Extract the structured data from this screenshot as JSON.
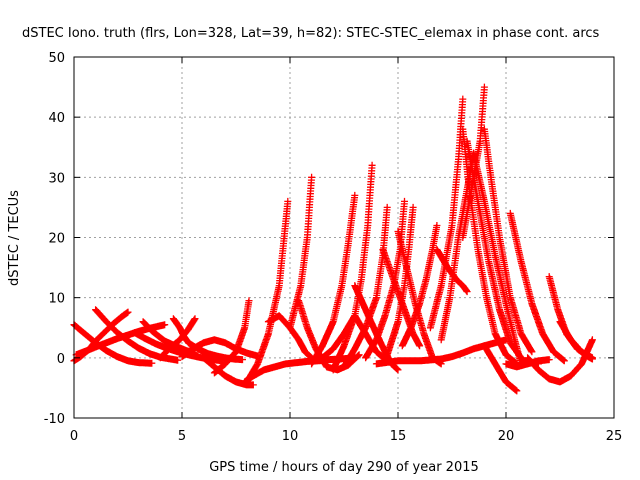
{
  "chart_data": {
    "type": "scatter",
    "title": "dSTEC Iono. truth (flrs, Lon=328, Lat=39, h=82): STEC-STEC_elemax in phase cont. arcs",
    "xlabel": "GPS time / hours of day 290 of year 2015",
    "ylabel": "dSTEC  / TECUs",
    "xlim": [
      0,
      25
    ],
    "ylim": [
      -10,
      50
    ],
    "xticks": [
      0,
      5,
      10,
      15,
      20,
      25
    ],
    "yticks": [
      -10,
      0,
      10,
      20,
      30,
      40,
      50
    ],
    "grid": true,
    "marker": "plus",
    "colors": {
      "series": "#ff0000",
      "grid": "#a0a0a0",
      "axis": "#000000"
    },
    "series": [
      {
        "x": [
          0.0,
          0.5,
          1.0,
          1.5,
          2.0,
          2.5,
          3.0,
          3.6
        ],
        "y": [
          5.5,
          4.0,
          2.5,
          1.2,
          0.2,
          -0.5,
          -0.8,
          -0.9
        ]
      },
      {
        "x": [
          0.0,
          0.3,
          0.7,
          1.0,
          1.4,
          1.8,
          2.2,
          2.5
        ],
        "y": [
          -0.5,
          0.2,
          1.4,
          2.8,
          4.2,
          5.6,
          6.8,
          7.6
        ]
      },
      {
        "x": [
          0.1,
          0.6,
          1.0,
          1.5,
          2.0,
          2.5,
          3.0,
          3.5,
          4.2
        ],
        "y": [
          0.5,
          1.2,
          1.8,
          2.5,
          3.2,
          3.8,
          4.4,
          4.9,
          5.5
        ]
      },
      {
        "x": [
          1.0,
          1.5,
          2.0,
          2.5,
          3.0,
          3.5,
          4.0,
          4.8
        ],
        "y": [
          8.0,
          6.0,
          4.2,
          2.8,
          1.6,
          0.7,
          0.1,
          -0.4
        ]
      },
      {
        "x": [
          2.8,
          3.3,
          3.8,
          4.3,
          4.8,
          5.3,
          5.8,
          6.4,
          6.9
        ],
        "y": [
          4.2,
          3.2,
          2.3,
          1.6,
          1.0,
          0.5,
          0.1,
          -0.3,
          -0.5
        ]
      },
      {
        "x": [
          3.2,
          3.6,
          4.2,
          4.8,
          5.2,
          5.6
        ],
        "y": [
          6.0,
          4.5,
          2.8,
          1.8,
          1.2,
          0.8
        ]
      },
      {
        "x": [
          4.6,
          4.9,
          5.1,
          5.3,
          5.6,
          5.9,
          6.2,
          6.6,
          7.0,
          7.4,
          7.8
        ],
        "y": [
          6.5,
          5.0,
          3.5,
          2.5,
          1.8,
          1.2,
          0.7,
          0.3,
          0.0,
          -0.2,
          -0.3
        ]
      },
      {
        "x": [
          4.0,
          4.4,
          4.9,
          5.3,
          5.6
        ],
        "y": [
          0.0,
          1.5,
          3.0,
          4.8,
          6.5
        ]
      },
      {
        "x": [
          5.0,
          5.5,
          6.0,
          6.5,
          7.0,
          7.5,
          8.0,
          8.5
        ],
        "y": [
          0.2,
          1.5,
          2.5,
          3.0,
          2.5,
          1.5,
          0.8,
          0.3
        ]
      },
      {
        "x": [
          6.0,
          6.5,
          7.0,
          7.5,
          8.0,
          8.3
        ],
        "y": [
          0.0,
          -1.5,
          -3.0,
          -4.0,
          -4.5,
          -4.5
        ]
      },
      {
        "x": [
          6.5,
          7.0,
          7.5,
          7.9,
          8.1
        ],
        "y": [
          -2.5,
          -1.0,
          1.0,
          5.0,
          9.5
        ]
      },
      {
        "x": [
          8.0,
          8.5,
          9.0,
          9.5,
          9.7,
          9.9
        ],
        "y": [
          -4.0,
          -1.0,
          4.0,
          12.0,
          19.0,
          26.0
        ]
      },
      {
        "x": [
          7.9,
          8.3,
          8.8,
          9.3,
          9.8,
          10.3,
          10.8,
          11.3,
          11.8,
          12.3,
          13.0
        ],
        "y": [
          -4.0,
          -3.0,
          -2.0,
          -1.5,
          -1.0,
          -0.8,
          -0.6,
          -0.5,
          -0.3,
          -0.2,
          0.0
        ]
      },
      {
        "x": [
          9.0,
          9.5,
          10.0,
          10.4,
          10.7,
          11.0
        ],
        "y": [
          6.0,
          7.0,
          5.0,
          3.0,
          1.0,
          0.0
        ]
      },
      {
        "x": [
          10.0,
          10.5,
          10.8,
          11.0
        ],
        "y": [
          5.0,
          12.0,
          20.0,
          30.0
        ]
      },
      {
        "x": [
          10.4,
          10.8,
          11.2,
          11.7,
          12.2,
          12.7,
          13.2
        ],
        "y": [
          9.5,
          5.0,
          1.5,
          -1.5,
          -2.0,
          -1.2,
          0.5
        ]
      },
      {
        "x": [
          11.0,
          11.5,
          12.0,
          12.4,
          12.7,
          13.0
        ],
        "y": [
          -1.0,
          2.0,
          6.0,
          12.0,
          19.0,
          27.0
        ]
      },
      {
        "x": [
          11.5,
          12.0,
          12.5,
          13.0,
          13.5,
          14.0,
          14.5
        ],
        "y": [
          0.0,
          1.5,
          4.0,
          7.0,
          4.0,
          1.0,
          -0.5
        ]
      },
      {
        "x": [
          12.0,
          12.5,
          13.0,
          13.3,
          13.6,
          13.8
        ],
        "y": [
          -2.0,
          2.0,
          7.0,
          13.0,
          22.0,
          32.0
        ]
      },
      {
        "x": [
          12.5,
          13.0,
          13.5,
          14.0,
          14.3,
          14.5
        ],
        "y": [
          -1.5,
          1.5,
          5.0,
          10.0,
          17.0,
          25.0
        ]
      },
      {
        "x": [
          13.0,
          13.5,
          14.0,
          14.4,
          14.7,
          15.0
        ],
        "y": [
          12.0,
          8.0,
          4.0,
          1.0,
          -1.0,
          -2.0
        ]
      },
      {
        "x": [
          13.5,
          14.0,
          14.4,
          14.8,
          15.1,
          15.3
        ],
        "y": [
          0.0,
          3.0,
          7.0,
          12.0,
          18.0,
          26.0
        ]
      },
      {
        "x": [
          14.3,
          14.7,
          15.1,
          15.4,
          15.7,
          16.0
        ],
        "y": [
          18.0,
          14.0,
          10.0,
          7.0,
          4.0,
          2.0
        ]
      },
      {
        "x": [
          14.5,
          15.0,
          15.3,
          15.5,
          15.7
        ],
        "y": [
          0.5,
          6.0,
          12.0,
          18.0,
          25.0
        ]
      },
      {
        "x": [
          15.0,
          15.4,
          15.8,
          16.2,
          16.6,
          17.0
        ],
        "y": [
          21.0,
          15.0,
          9.0,
          4.0,
          0.0,
          -1.0
        ]
      },
      {
        "x": [
          15.2,
          15.6,
          16.0,
          16.3,
          16.6,
          16.8
        ],
        "y": [
          2.0,
          5.0,
          9.0,
          13.0,
          18.0,
          22.0
        ]
      },
      {
        "x": [
          14.0,
          15.0,
          16.0,
          17.0,
          17.5,
          18.0,
          18.5,
          19.0,
          19.5,
          20.0
        ],
        "y": [
          -1.0,
          -0.5,
          -0.5,
          -0.2,
          0.2,
          0.8,
          1.5,
          2.0,
          2.5,
          3.0
        ]
      },
      {
        "x": [
          16.5,
          17.0,
          17.5,
          17.8,
          18.0
        ],
        "y": [
          5.0,
          12.0,
          22.0,
          33.0,
          43.0
        ]
      },
      {
        "x": [
          16.8,
          17.3,
          17.7,
          18.0,
          18.2
        ],
        "y": [
          18.0,
          15.0,
          13.0,
          12.0,
          11.0
        ]
      },
      {
        "x": [
          17.0,
          17.4,
          17.8,
          18.2,
          18.5
        ],
        "y": [
          3.0,
          10.0,
          20.0,
          28.0,
          34.0
        ]
      },
      {
        "x": [
          18.0,
          18.3,
          18.7,
          19.1,
          19.5,
          20.0,
          20.5
        ],
        "y": [
          38.0,
          28.0,
          18.0,
          10.0,
          4.0,
          0.5,
          -1.0
        ]
      },
      {
        "x": [
          18.2,
          18.7,
          19.2,
          19.7,
          20.2,
          20.8,
          21.5
        ],
        "y": [
          36.0,
          26.0,
          16.0,
          8.0,
          2.5,
          -0.5,
          -1.0
        ]
      },
      {
        "x": [
          18.0,
          18.4,
          18.8,
          19.0
        ],
        "y": [
          20.0,
          28.0,
          36.0,
          45.0
        ]
      },
      {
        "x": [
          18.5,
          19.0,
          19.5,
          20.0,
          20.4,
          20.7
        ],
        "y": [
          34.0,
          26.0,
          17.0,
          9.0,
          3.0,
          -1.0
        ]
      },
      {
        "x": [
          19.0,
          19.3,
          19.7,
          20.2,
          20.7,
          21.2
        ],
        "y": [
          38.0,
          30.0,
          20.0,
          10.0,
          4.0,
          1.0
        ]
      },
      {
        "x": [
          19.0,
          19.5,
          20.0,
          20.5
        ],
        "y": [
          2.0,
          -1.0,
          -4.0,
          -5.5
        ]
      },
      {
        "x": [
          20.2,
          20.7,
          21.2,
          21.7,
          22.2,
          22.7
        ],
        "y": [
          24.0,
          16.0,
          9.0,
          4.0,
          1.0,
          -0.5
        ]
      },
      {
        "x": [
          22.0,
          22.4,
          22.8,
          23.3,
          23.8,
          24.0
        ],
        "y": [
          13.5,
          8.0,
          4.0,
          1.5,
          0.2,
          -0.2
        ]
      },
      {
        "x": [
          21.0,
          21.5,
          22.0,
          22.5,
          23.0,
          23.5,
          24.0
        ],
        "y": [
          0.0,
          -2.0,
          -3.5,
          -4.0,
          -3.0,
          -1.0,
          3.0
        ]
      },
      {
        "x": [
          22.5,
          23.0,
          23.5,
          24.0
        ],
        "y": [
          6.0,
          3.0,
          1.0,
          0.0
        ]
      },
      {
        "x": [
          20.0,
          20.5,
          21.0,
          21.5,
          22.0
        ],
        "y": [
          -1.0,
          -1.5,
          -1.0,
          -0.5,
          -0.3
        ]
      }
    ]
  }
}
